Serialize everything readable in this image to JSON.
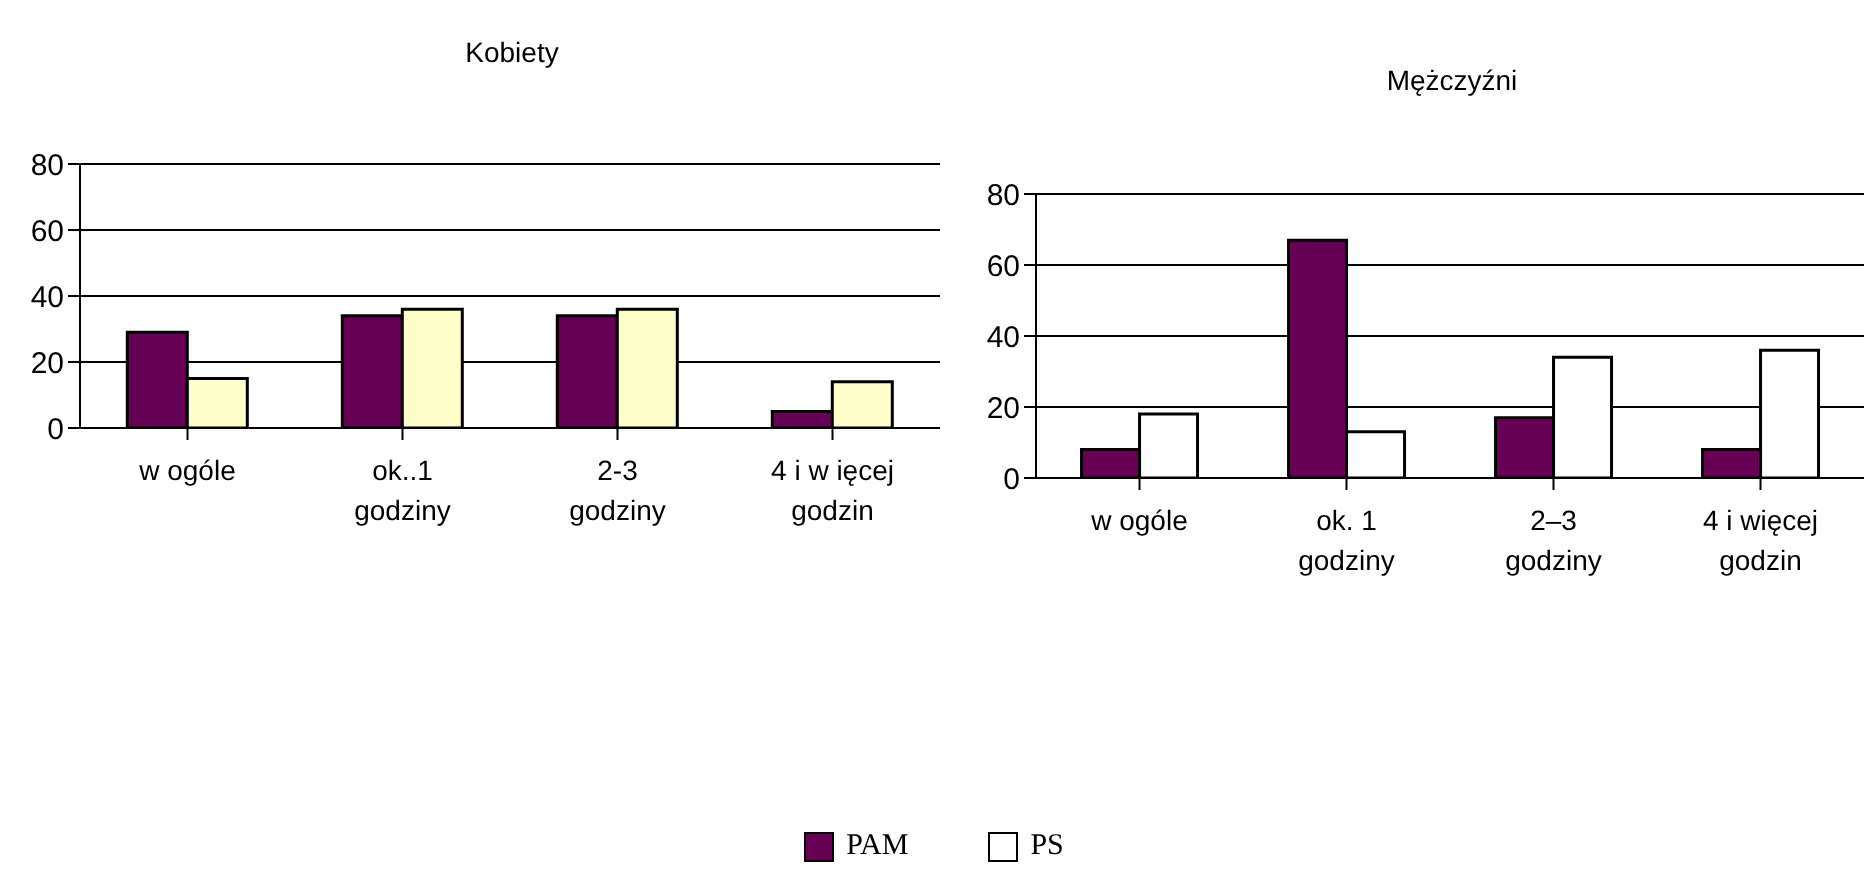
{
  "chart_data": [
    {
      "type": "bar",
      "title": "Kobiety",
      "categories": [
        "w  ogóle",
        "ok..1\ngodziny",
        "2-3\ngodziny",
        "4 i w ięcej\ngodzin"
      ],
      "series": [
        {
          "color": "#660055",
          "values": [
            29,
            34,
            34,
            5
          ]
        },
        {
          "color": "#ffffcc",
          "values": [
            15,
            36,
            36,
            14
          ]
        }
      ],
      "ylim": [
        0,
        80
      ],
      "yticks": [
        0,
        20,
        40,
        60,
        80
      ],
      "grid": "y",
      "legend": false
    },
    {
      "type": "bar",
      "title": "Mężczyźni",
      "categories": [
        "w ogóle",
        "ok. 1\ngodziny",
        "2–3\ngodziny",
        "4 i więcej\ngodzin"
      ],
      "series": [
        {
          "name": "PAM",
          "color": "#660055",
          "values": [
            8,
            67,
            17,
            8
          ]
        },
        {
          "name": "PS",
          "color": "#ffffff",
          "values": [
            18,
            13,
            34,
            36
          ]
        }
      ],
      "ylim": [
        0,
        80
      ],
      "yticks": [
        0,
        20,
        40,
        60,
        80
      ],
      "grid": "y",
      "legend": "bottom"
    }
  ]
}
